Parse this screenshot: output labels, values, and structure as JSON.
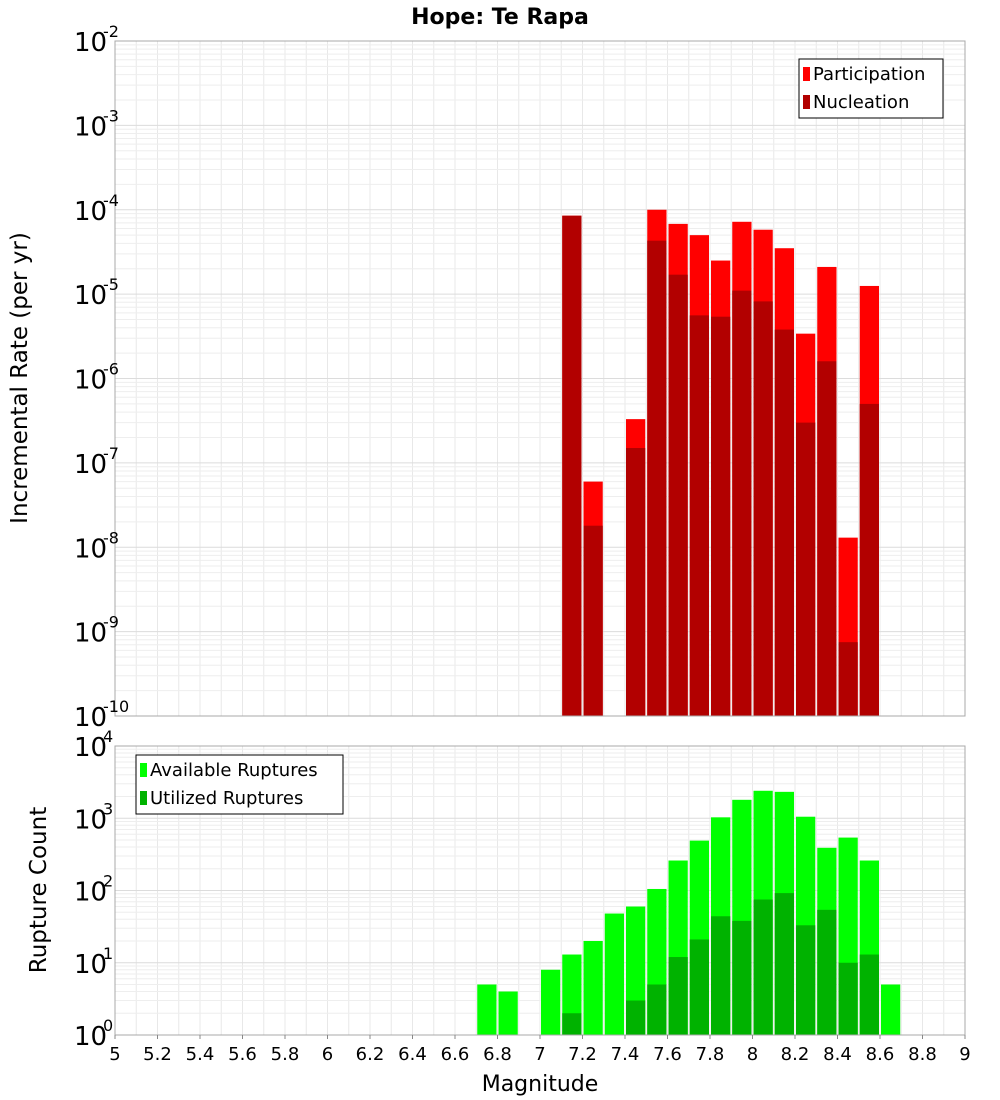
{
  "chart_data": {
    "title": "Hope: Te Rapa",
    "xlabel": "Magnitude",
    "x_range": [
      5,
      9
    ],
    "x_ticks": [
      "5",
      "5.2",
      "5.4",
      "5.6",
      "5.8",
      "6",
      "6.2",
      "6.4",
      "6.6",
      "6.8",
      "7",
      "7.2",
      "7.4",
      "7.6",
      "7.8",
      "8",
      "8.2",
      "8.4",
      "8.6",
      "8.8",
      "9"
    ],
    "bin_width": 0.1,
    "grid": true,
    "panels": [
      {
        "type": "bar",
        "ylabel": "Incremental Rate (per yr)",
        "yscale": "log",
        "y_exponent_range": [
          -10,
          -2
        ],
        "legend_position": "top-right",
        "colors": {
          "Participation": "#ff0000",
          "Nucleation": "#b20000"
        },
        "series": [
          {
            "name": "Participation",
            "x": [
              7.15,
              7.25,
              7.45,
              7.55,
              7.65,
              7.75,
              7.85,
              7.95,
              8.05,
              8.15,
              8.25,
              8.35,
              8.45,
              8.55
            ],
            "values": [
              8.5e-05,
              6e-08,
              3.3e-07,
              0.0001,
              6.8e-05,
              5e-05,
              2.5e-05,
              7.2e-05,
              5.8e-05,
              3.5e-05,
              3.4e-06,
              2.1e-05,
              1.3e-08,
              1.25e-05
            ]
          },
          {
            "name": "Nucleation",
            "x": [
              7.15,
              7.25,
              7.45,
              7.55,
              7.65,
              7.75,
              7.85,
              7.95,
              8.05,
              8.15,
              8.25,
              8.35,
              8.45,
              8.55
            ],
            "values": [
              8.5e-05,
              1.8e-08,
              1.5e-07,
              4.3e-05,
              1.7e-05,
              5.6e-06,
              5.4e-06,
              1.1e-05,
              8.2e-06,
              3.8e-06,
              3e-07,
              1.6e-06,
              7.5e-10,
              5e-07
            ]
          }
        ]
      },
      {
        "type": "bar",
        "ylabel": "Rupture Count",
        "yscale": "log",
        "y_exponent_range": [
          0,
          4
        ],
        "legend_position": "top-left",
        "colors": {
          "Available Ruptures": "#00ff00",
          "Utilized Ruptures": "#00b200"
        },
        "series": [
          {
            "name": "Available Ruptures",
            "x": [
              6.75,
              6.85,
              6.95,
              7.05,
              7.15,
              7.25,
              7.35,
              7.45,
              7.55,
              7.65,
              7.75,
              7.85,
              7.95,
              8.05,
              8.15,
              8.25,
              8.35,
              8.45,
              8.55,
              8.65
            ],
            "values": [
              5,
              4,
              1,
              8,
              13,
              20,
              48,
              60,
              105,
              260,
              490,
              1030,
              1800,
              2400,
              2320,
              1050,
              390,
              540,
              260,
              5
            ]
          },
          {
            "name": "Utilized Ruptures",
            "x": [
              7.15,
              7.25,
              7.45,
              7.55,
              7.65,
              7.75,
              7.85,
              7.95,
              8.05,
              8.15,
              8.25,
              8.35,
              8.45,
              8.55
            ],
            "values": [
              2,
              1,
              3,
              5,
              12,
              21,
              44,
              38,
              75,
              92,
              33,
              54,
              10,
              13
            ]
          }
        ]
      }
    ]
  }
}
